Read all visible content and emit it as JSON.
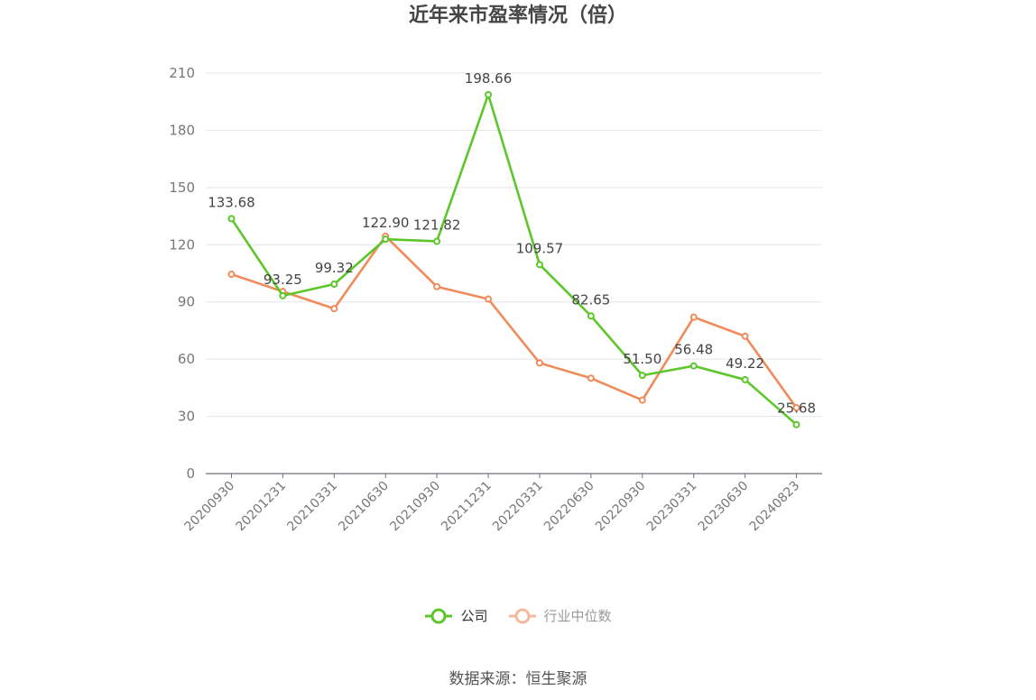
{
  "chart_data": {
    "type": "line",
    "title": "近年来市盈率情况（倍）",
    "categories": [
      "20200930",
      "20201231",
      "20210331",
      "20210630",
      "20210930",
      "20211231",
      "20220331",
      "20220630",
      "20220930",
      "20230331",
      "20230630",
      "20240823"
    ],
    "ylim": [
      0,
      210
    ],
    "yticks": [
      0,
      30,
      60,
      90,
      120,
      150,
      180,
      210
    ],
    "grid": true,
    "legend_position": "bottom-center",
    "series": [
      {
        "name": "公司",
        "color": "#5cc72a",
        "show_labels": true,
        "values": [
          133.68,
          93.25,
          99.32,
          122.9,
          121.82,
          198.66,
          109.57,
          82.65,
          51.5,
          56.48,
          49.22,
          25.68
        ]
      },
      {
        "name": "行业中位数",
        "color": "#f08b5a",
        "legend_color": "#f6b9a0",
        "show_labels": false,
        "values": [
          104.5,
          95.5,
          86.5,
          124.5,
          98.0,
          91.5,
          58.0,
          50.0,
          38.5,
          82.0,
          72.0,
          34.5
        ]
      }
    ]
  },
  "source_text": "数据来源：恒生聚源"
}
